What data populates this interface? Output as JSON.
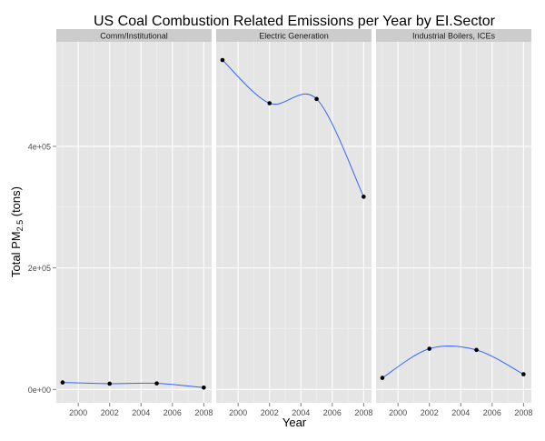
{
  "chart_data": {
    "type": "line",
    "title": "US Coal Combustion Related Emissions per Year by EI.Sector",
    "xlabel": "Year",
    "ylabel": "Total PM",
    "ylabel_subscript": "2.5",
    "ylabel_suffix": " (tons)",
    "x_ticks": [
      2000,
      2002,
      2004,
      2006,
      2008
    ],
    "y_ticks": [
      0,
      200000,
      400000
    ],
    "y_tick_labels": [
      "0e+00",
      "2e+05",
      "4e+05"
    ],
    "xlim": [
      1998.6,
      2008.5
    ],
    "ylim": [
      -22000,
      572000
    ],
    "grid": true,
    "point_color": "#000000",
    "line_color": "#3366ff",
    "panel_bg": "#e5e5e5",
    "strip_bg": "#cccccc",
    "panels": [
      {
        "name": "Comm/Institutional",
        "x": [
          1999,
          2002,
          2005,
          2008
        ],
        "y": [
          11500,
          9500,
          10000,
          3000
        ]
      },
      {
        "name": "Electric Generation",
        "x": [
          1999,
          2002,
          2005,
          2008
        ],
        "y": [
          542000,
          471000,
          478000,
          317000
        ]
      },
      {
        "name": "Industrial Boilers, ICEs",
        "x": [
          1999,
          2002,
          2005,
          2008
        ],
        "y": [
          19000,
          67000,
          65000,
          25000
        ]
      }
    ]
  }
}
